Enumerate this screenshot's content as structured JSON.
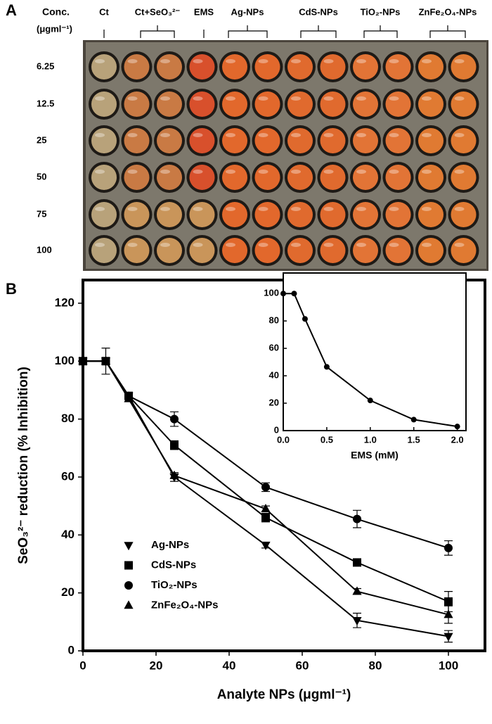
{
  "panel_a": {
    "label": "A",
    "conc_title": "Conc.",
    "conc_unit": "(μgml⁻¹)",
    "columns": [
      "Ct",
      "Ct+SeO₃²⁻",
      "EMS",
      "Ag-NPs",
      "CdS-NPs",
      "TiO₂-NPs",
      "ZnFe₂O₄-NPs"
    ],
    "rows": [
      "6.25",
      "12.5",
      "25",
      "50",
      "75",
      "100"
    ]
  },
  "panel_b_label": "B",
  "chart_data": [
    {
      "type": "line",
      "x_label": "Analyte NPs (μgml⁻¹)",
      "y_label": "SeO₃²⁻ reduction (% Inhibition)",
      "x": [
        0,
        6.25,
        12.5,
        25,
        50,
        75,
        100
      ],
      "xlim": [
        0,
        110
      ],
      "xticks": [
        0,
        20,
        40,
        60,
        80,
        100
      ],
      "ylim": [
        0,
        128
      ],
      "yticks": [
        0,
        20,
        40,
        60,
        80,
        100,
        120
      ],
      "legend": "bottom-left",
      "series": [
        {
          "name": "Ag-NPs",
          "color": "#000000",
          "marker": "triangle-down",
          "values": [
            100,
            100,
            88,
            60,
            36.5,
            10.5,
            5
          ],
          "errors": [
            0,
            0,
            1,
            1.5,
            1,
            2.5,
            2
          ]
        },
        {
          "name": "CdS-NPs",
          "color": "#000000",
          "marker": "square",
          "values": [
            100,
            100,
            88,
            71,
            46,
            30.5,
            17
          ],
          "errors": [
            0,
            0,
            1,
            1.5,
            1.5,
            1,
            3.5
          ]
        },
        {
          "name": "TiO₂-NPs",
          "color": "#000000",
          "marker": "circle",
          "values": [
            100,
            100,
            88,
            80,
            56.5,
            45.5,
            35.5
          ],
          "errors": [
            0,
            4.5,
            1,
            2.5,
            1.5,
            3,
            2.5
          ]
        },
        {
          "name": "ZnFe₂O₄-NPs",
          "color": "#000000",
          "marker": "triangle-up",
          "values": [
            100,
            100,
            87,
            60.5,
            49,
            20.5,
            12.5
          ],
          "errors": [
            0,
            0,
            1,
            1,
            1,
            1,
            3
          ]
        }
      ]
    },
    {
      "type": "line",
      "x_label": "EMS (mM)",
      "x": [
        0,
        0.125,
        0.25,
        0.5,
        1,
        1.5,
        2
      ],
      "xlim": [
        0,
        2.1
      ],
      "xticks": [
        {
          "value": 0,
          "label": "0.0"
        },
        {
          "value": 0.5,
          "label": "0.5"
        },
        {
          "value": 1,
          "label": "1.0"
        },
        {
          "value": 1.5,
          "label": "1.5"
        },
        {
          "value": 2,
          "label": "2.0"
        }
      ],
      "ylim": [
        0,
        115
      ],
      "yticks": [
        0,
        20,
        40,
        60,
        80,
        100
      ],
      "series": [
        {
          "color": "#000000",
          "marker": "circle",
          "values": [
            100,
            100,
            81.5,
            46.5,
            22,
            8,
            3
          ]
        }
      ]
    }
  ]
}
